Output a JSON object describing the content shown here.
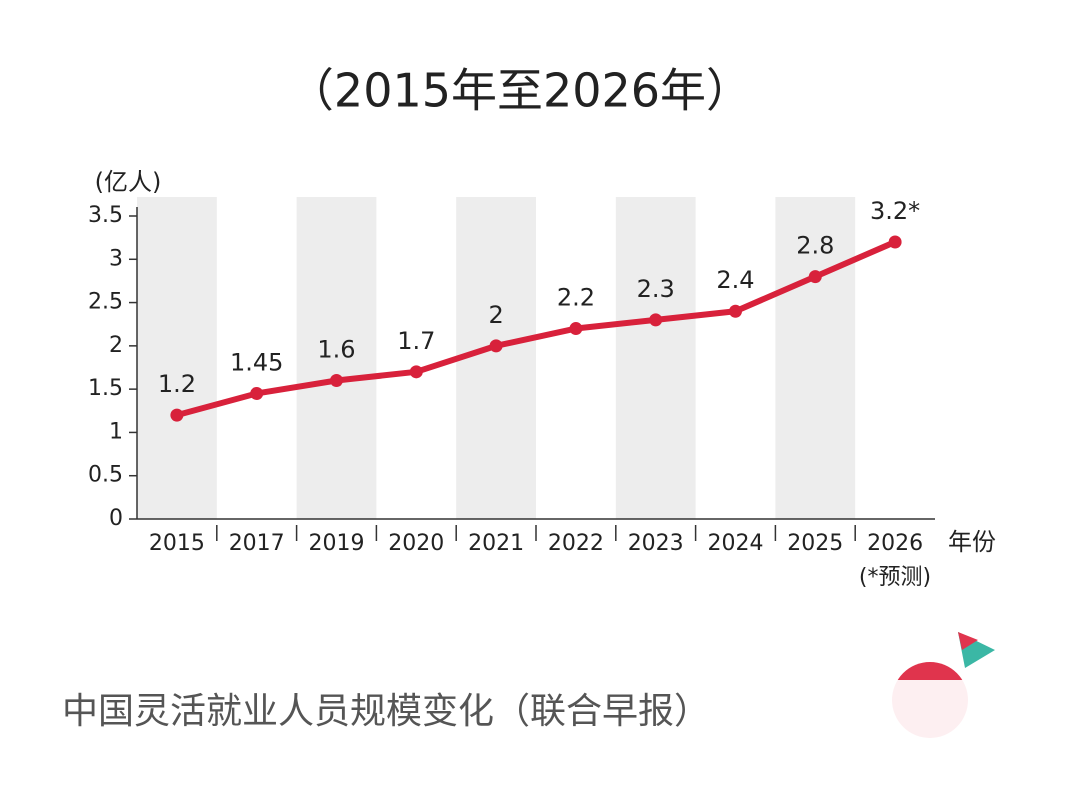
{
  "chart_data": {
    "type": "line",
    "title": "（2015年至2026年）",
    "y_label": "(亿人)",
    "x_label": "年份",
    "annotation": "(*预测)",
    "caption": "中国灵活就业人员规模变化（联合早报）",
    "categories": [
      "2015",
      "2017",
      "2019",
      "2020",
      "2021",
      "2022",
      "2023",
      "2024",
      "2025",
      "2026"
    ],
    "values": [
      1.2,
      1.45,
      1.6,
      1.7,
      2,
      2.2,
      2.3,
      2.4,
      2.8,
      3.2
    ],
    "value_labels": [
      "1.2",
      "1.45",
      "1.6",
      "1.7",
      "2",
      "2.2",
      "2.3",
      "2.4",
      "2.8",
      "3.2*"
    ],
    "color": "#d8213b",
    "ylim": [
      0,
      3.5
    ],
    "yticks": [
      0,
      0.5,
      1,
      1.5,
      2,
      2.5,
      3,
      3.5
    ]
  }
}
